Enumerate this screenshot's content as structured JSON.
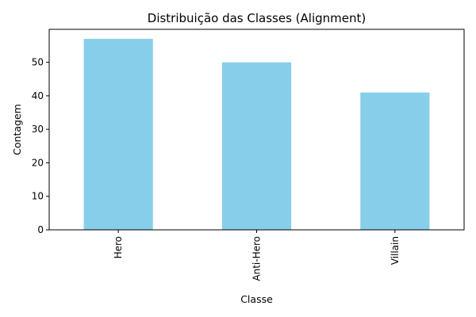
{
  "chart_data": {
    "type": "bar",
    "title": "Distribuição das Classes (Alignment)",
    "xlabel": "Classe",
    "ylabel": "Contagem",
    "categories": [
      "Hero",
      "Anti-Hero",
      "Villain"
    ],
    "values": [
      57,
      50,
      41
    ],
    "ylim": [
      0,
      59.85
    ],
    "yticks": [
      0,
      10,
      20,
      30,
      40,
      50
    ],
    "bar_color": "#87ceeb",
    "grid": false,
    "x_tick_rotation": "vertical"
  }
}
